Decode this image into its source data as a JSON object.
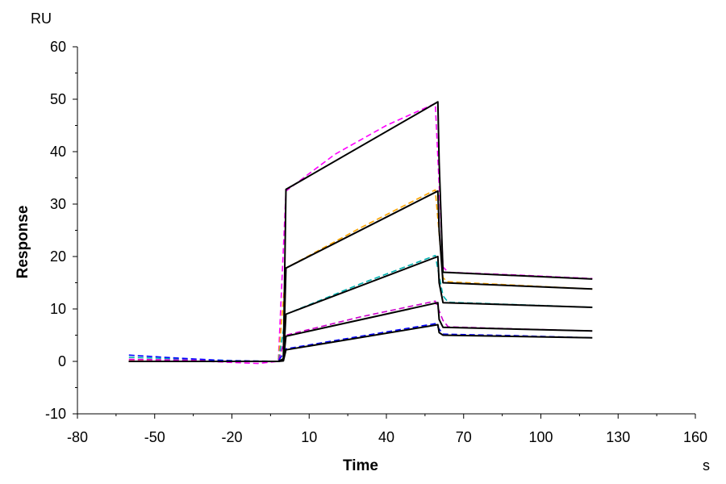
{
  "chart_data": {
    "type": "line",
    "title": "",
    "xlabel": "Time",
    "ylabel": "Response",
    "x_unit": "s",
    "y_unit": "RU",
    "xlim": [
      -80,
      160
    ],
    "ylim": [
      -10,
      60
    ],
    "x_ticks": [
      -80,
      -50,
      -20,
      10,
      40,
      70,
      100,
      130,
      160
    ],
    "y_ticks": [
      -10,
      0,
      10,
      20,
      30,
      40,
      50,
      60
    ],
    "x_tick_labels": [
      "-80",
      "-50",
      "-20",
      "10",
      "40",
      "70",
      "100",
      "130",
      "160"
    ],
    "y_tick_labels": [
      "-10",
      "0",
      "10",
      "20",
      "30",
      "40",
      "50",
      "60"
    ],
    "grid": false,
    "legend": "none",
    "series": [
      {
        "color": "#000000",
        "x": [
          -60,
          -2,
          0,
          1,
          60,
          60.5,
          62,
          120
        ],
        "y": [
          0,
          0,
          0.5,
          32.8,
          49.5,
          38,
          17,
          15.7
        ]
      },
      {
        "color": "#000000",
        "x": [
          -60,
          -2,
          0,
          1,
          60,
          60.5,
          62,
          120
        ],
        "y": [
          0,
          0,
          0.4,
          17.8,
          32.5,
          25,
          15,
          13.8
        ]
      },
      {
        "color": "#000000",
        "x": [
          -60,
          -2,
          0,
          1,
          60,
          60.5,
          62,
          120
        ],
        "y": [
          0,
          0,
          0.3,
          9,
          20,
          15,
          11.2,
          10.3
        ]
      },
      {
        "color": "#000000",
        "x": [
          -60,
          -2,
          0,
          1,
          60,
          60.5,
          62,
          120
        ],
        "y": [
          0,
          0,
          0.2,
          4.8,
          11.2,
          8,
          6.5,
          5.8
        ]
      },
      {
        "color": "#000000",
        "x": [
          -60,
          -2,
          0,
          1,
          60,
          60.5,
          62,
          120
        ],
        "y": [
          0,
          0,
          0.1,
          2.2,
          7,
          5.5,
          5,
          4.5
        ]
      },
      {
        "color": "#ff00ff",
        "x": [
          -60,
          -30,
          -10,
          -2,
          1,
          20,
          40,
          59,
          62,
          64,
          90,
          120
        ],
        "y": [
          0.3,
          0,
          -0.4,
          0,
          32.5,
          39.5,
          45,
          49.2,
          18,
          17,
          16.5,
          15.8
        ]
      },
      {
        "color": "#ffa500",
        "x": [
          -60,
          -2,
          1,
          30,
          59,
          62,
          63.5,
          120
        ],
        "y": [
          0.1,
          0,
          17.8,
          25.5,
          32.7,
          16,
          15.2,
          13.8
        ]
      },
      {
        "color": "#00b0b0",
        "x": [
          -60,
          -30,
          -2,
          1,
          30,
          59,
          62,
          64,
          120
        ],
        "y": [
          0.8,
          0.3,
          0,
          9,
          14.8,
          20.2,
          12.5,
          11.3,
          10.3
        ]
      },
      {
        "color": "#cc00cc",
        "x": [
          -60,
          -2,
          1,
          30,
          59,
          62,
          64,
          90,
          120
        ],
        "y": [
          0.4,
          0,
          5,
          8.5,
          11.5,
          7.8,
          6.6,
          6.2,
          5.8
        ]
      },
      {
        "color": "#0000ff",
        "x": [
          -60,
          -40,
          -20,
          -2,
          1,
          30,
          59,
          62,
          90,
          120
        ],
        "y": [
          1.2,
          0.6,
          0.1,
          0,
          2.4,
          4.8,
          7.2,
          5.2,
          4.9,
          4.5
        ]
      }
    ]
  }
}
